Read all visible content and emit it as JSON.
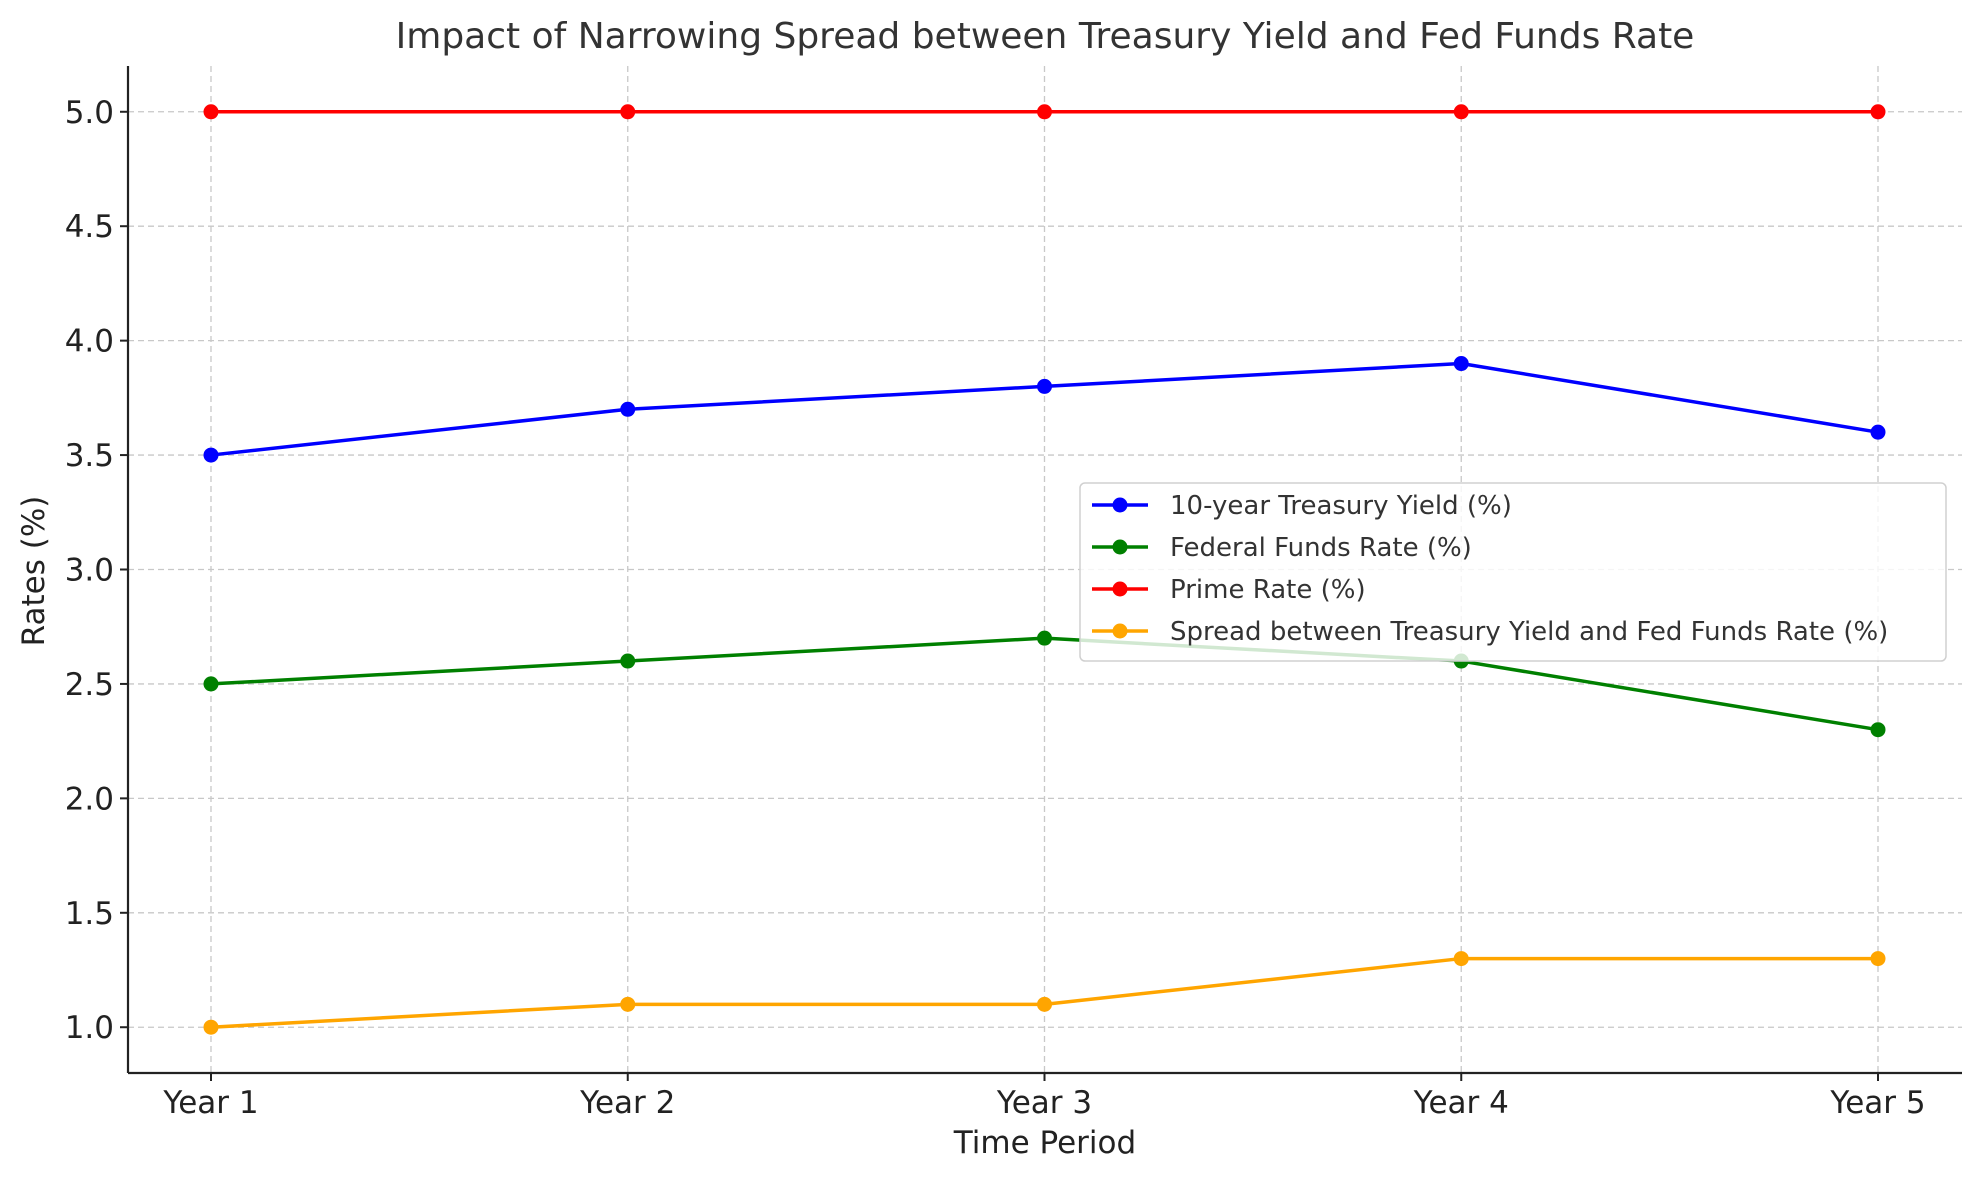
{
  "chart_data": {
    "type": "line",
    "title": "Impact of Narrowing Spread between Treasury Yield and Fed Funds Rate",
    "xlabel": "Time Period",
    "ylabel": "Rates (%)",
    "categories": [
      "Year 1",
      "Year 2",
      "Year 3",
      "Year 4",
      "Year 5"
    ],
    "ylim": [
      0.8,
      5.2
    ],
    "yticks": [
      "1.0",
      "1.5",
      "2.0",
      "2.5",
      "3.0",
      "3.5",
      "4.0",
      "4.5",
      "5.0"
    ],
    "grid": true,
    "legend_position": "center-right",
    "series": [
      {
        "name": "10-year Treasury Yield (%)",
        "color": "#0000ff",
        "values": [
          3.5,
          3.7,
          3.8,
          3.9,
          3.6
        ]
      },
      {
        "name": "Federal Funds Rate (%)",
        "color": "#008000",
        "values": [
          2.5,
          2.6,
          2.7,
          2.6,
          2.3
        ]
      },
      {
        "name": "Prime Rate (%)",
        "color": "#ff0000",
        "values": [
          5.0,
          5.0,
          5.0,
          5.0,
          5.0
        ]
      },
      {
        "name": "Spread between Treasury Yield and Fed Funds Rate (%)",
        "color": "#ffa500",
        "values": [
          1.0,
          1.1,
          1.1,
          1.3,
          1.3
        ]
      }
    ]
  }
}
